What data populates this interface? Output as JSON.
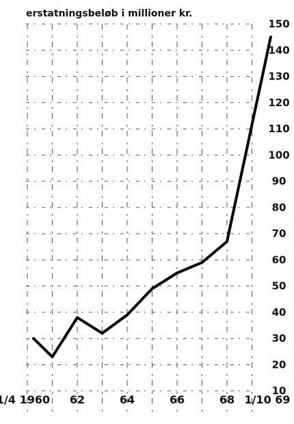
{
  "chart_data": {
    "type": "line",
    "title": "erstatningsbeløb i millioner kr.",
    "x_tick_labels": [
      "1/4 1960",
      "62",
      "64",
      "66",
      "68",
      "1/10 69"
    ],
    "x": [
      1960.25,
      1961,
      1962,
      1963,
      1964,
      1965,
      1966,
      1967,
      1968,
      1969.75
    ],
    "values": [
      30,
      23,
      38,
      32,
      39,
      49,
      55,
      59,
      67,
      145
    ],
    "y_ticks": [
      10,
      20,
      30,
      40,
      50,
      60,
      70,
      80,
      90,
      100,
      110,
      120,
      130,
      140,
      150
    ],
    "ylim": [
      0,
      150
    ],
    "xlim": [
      1960,
      1970
    ],
    "grid": true,
    "line_color": "#000000"
  }
}
